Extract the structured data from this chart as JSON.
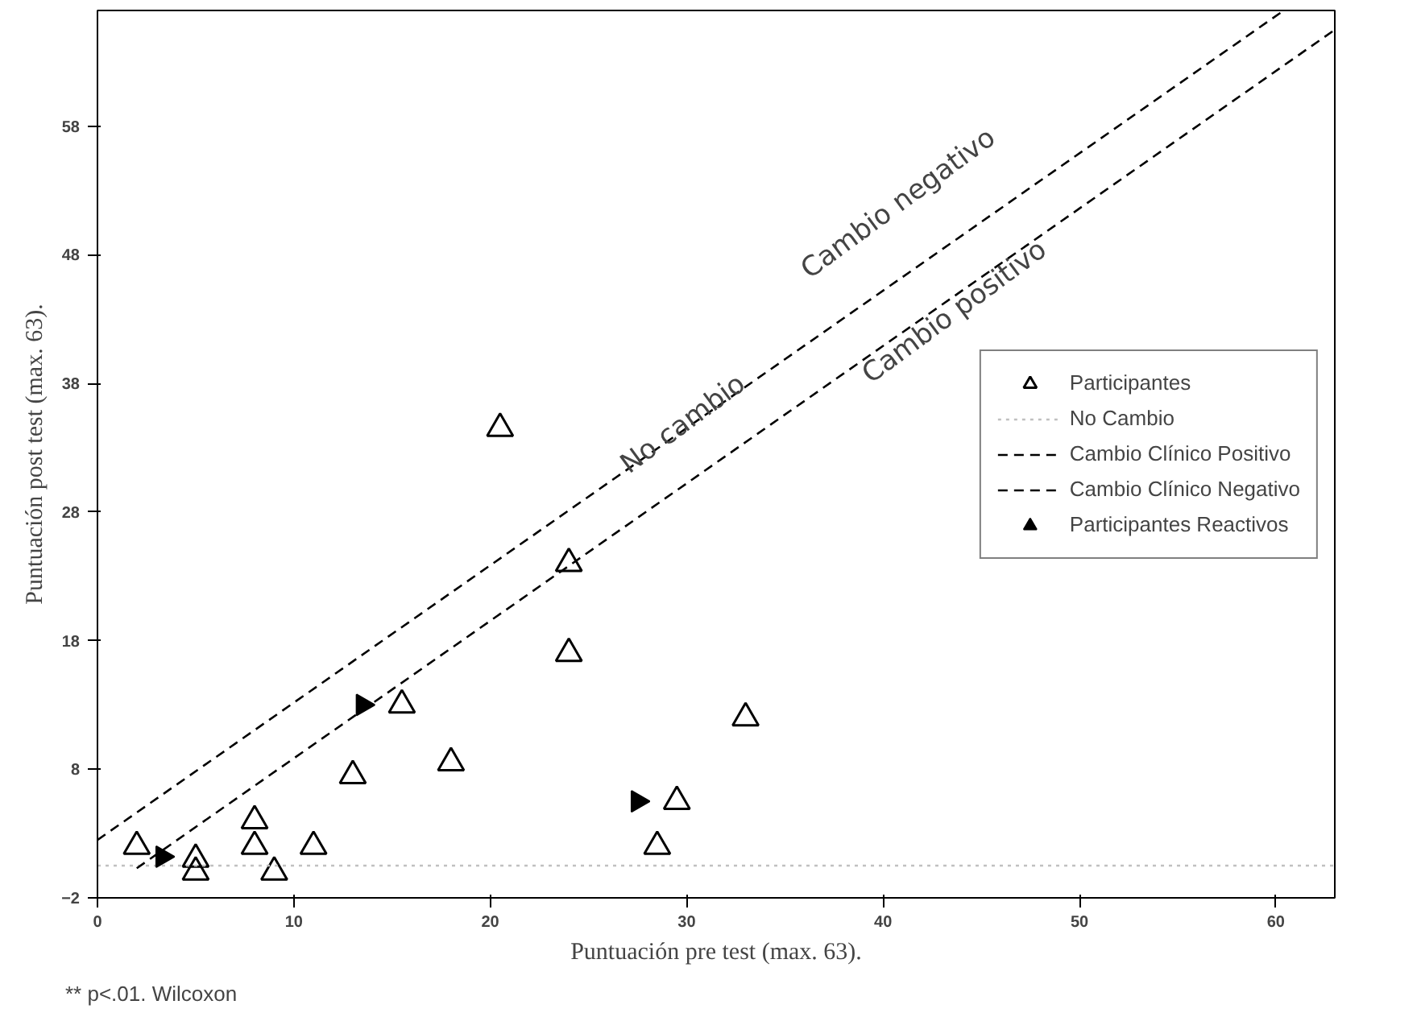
{
  "chart_data": {
    "type": "scatter",
    "xlabel": "Puntuación pre test (max. 63).",
    "ylabel": "Puntuación post test (max. 63).",
    "xlim": [
      0,
      63
    ],
    "xticks": [
      0,
      10,
      20,
      30,
      40,
      50,
      60
    ],
    "ylim": [
      -2,
      67
    ],
    "yticks": [
      -2,
      8,
      18,
      28,
      38,
      48,
      58
    ],
    "grid": false,
    "legend": "right",
    "series": [
      {
        "name": "Participantes",
        "marker": "triangle",
        "color": "#000000",
        "x": [
          2,
          5,
          5,
          8,
          8,
          9,
          11,
          13,
          15.5,
          18,
          20.5,
          24,
          24,
          28.5,
          29.5,
          33
        ],
        "values": [
          2,
          1,
          0,
          4,
          2,
          0,
          2,
          7.5,
          13,
          8.5,
          34.5,
          24,
          17,
          2,
          5.5,
          12
        ]
      },
      {
        "name": "No Cambio",
        "type": "line",
        "line_style": "dotted",
        "color": "#c0c0c0",
        "x": [
          0,
          63
        ],
        "values": [
          0.5,
          0.5
        ]
      },
      {
        "name": "Cambio Clínico Positivo",
        "type": "line",
        "line_style": "dashed",
        "color": "#000000",
        "x": [
          2,
          63
        ],
        "values": [
          0.3,
          65.5
        ]
      },
      {
        "name": "Cambio Clínico Negativo",
        "type": "line",
        "line_style": "dashed",
        "color": "#000000",
        "x": [
          0,
          60.4
        ],
        "values": [
          2.5,
          67
        ]
      },
      {
        "name": "Participantes Reactivos",
        "marker": "triangle",
        "color": "#000000",
        "x": [
          3.3,
          13.5,
          27.5
        ],
        "values": [
          1.2,
          13,
          5.5
        ]
      }
    ],
    "annotations": [
      "Cambio negativo",
      "No cambio",
      "Cambio positivo",
      "** p<.01. Wilcoxon"
    ]
  }
}
